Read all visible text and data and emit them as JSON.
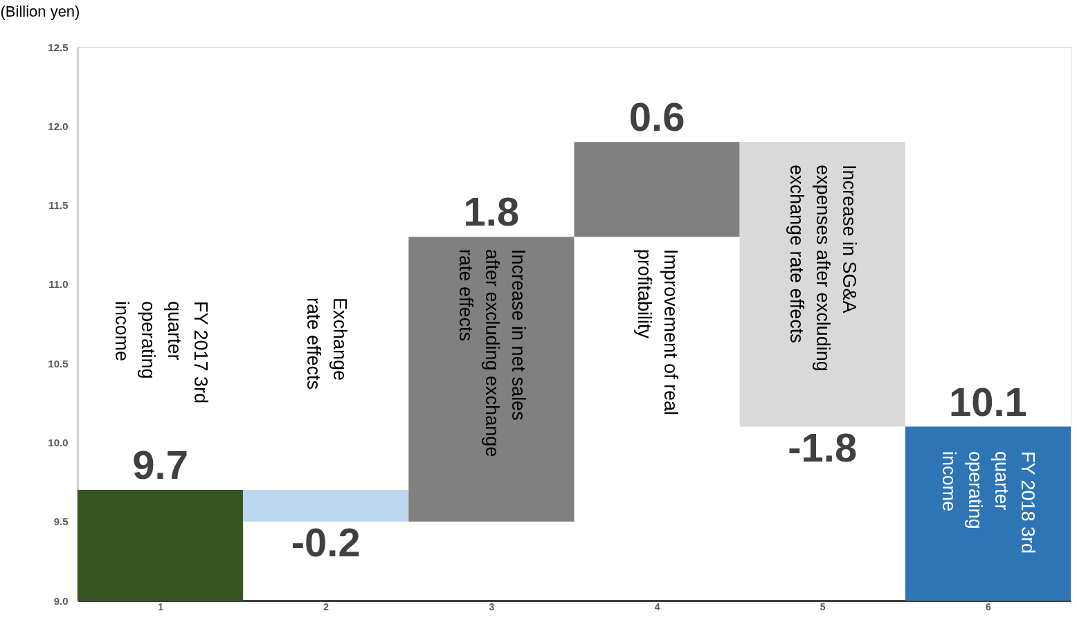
{
  "chart_data": {
    "type": "bar",
    "ylabel": "(Billion yen)",
    "categories": [
      "1",
      "2",
      "3",
      "4",
      "5",
      "6"
    ],
    "values": [
      9.7,
      -0.2,
      1.8,
      0.6,
      -1.8,
      10.1
    ],
    "base": [
      null,
      9.7,
      9.5,
      11.3,
      11.9,
      null
    ],
    "colors": [
      "#375623",
      "#bdd7ee",
      "#808080",
      "#808080",
      "#d9d9d9",
      "#2e75b6"
    ],
    "data_labels": true,
    "ylim": [
      9.0,
      12.5
    ],
    "yticks": [
      {
        "value": 9.0,
        "label": "9.0"
      },
      {
        "value": 9.5,
        "label": "9.5"
      },
      {
        "value": 10.0,
        "label": "10.0"
      },
      {
        "value": 10.5,
        "label": "10.5"
      },
      {
        "value": 11.0,
        "label": "11.0"
      },
      {
        "value": 11.5,
        "label": "11.5"
      },
      {
        "value": 12.0,
        "label": "12.0"
      },
      {
        "value": 12.5,
        "label": "12.5"
      }
    ],
    "grid": false,
    "annotations": [
      "FY 2017 3rd\nquarter\noperating\nincome",
      "Exchange\nrate effects",
      "Increase in net sales\nafter excluding exchange\nrate effects",
      "Improvement of real\nprofitability",
      "Increase in SG&A\nexpenses after excluding\nexchange rate effects",
      "FY 2018 3rd\nquarter\noperating\nincome"
    ]
  }
}
